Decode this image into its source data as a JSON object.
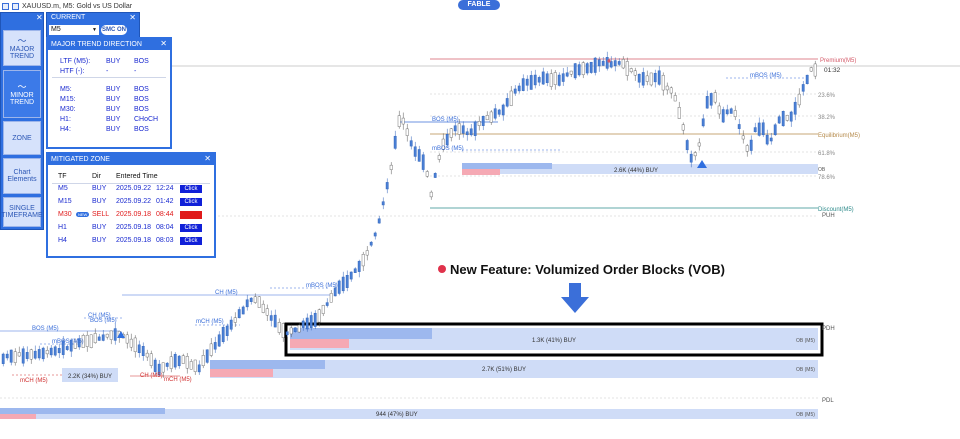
{
  "topbar": {
    "symbol": "XAUUSD.m, M5: Gold vs US Dollar"
  },
  "badge": {
    "label": "FABLE"
  },
  "left_panel": {
    "buttons": [
      {
        "label": "MAJOR TREND",
        "active": false,
        "glyph": "chart-line-icon"
      },
      {
        "label": "MINOR TREND",
        "active": true,
        "glyph": "chart-line-icon"
      },
      {
        "label": "ZONE",
        "active": false
      },
      {
        "label": "Chart Elements",
        "active": false
      },
      {
        "label": "SINGLE TIMEFRAME",
        "active": false
      }
    ]
  },
  "current_panel": {
    "title": "CURRENT",
    "timeframe": "M5",
    "smc_label": "SMC ON"
  },
  "major_trend": {
    "title": "MAJOR TREND DIRECTION",
    "rows_top": [
      {
        "tf": "LTF (M5):",
        "dir": "BUY",
        "type": "BOS"
      },
      {
        "tf": "HTF (-):",
        "dir": "-",
        "type": "-"
      }
    ],
    "rows": [
      {
        "tf": "M5:",
        "dir": "BUY",
        "type": "BOS"
      },
      {
        "tf": "M15:",
        "dir": "BUY",
        "type": "BOS"
      },
      {
        "tf": "M30:",
        "dir": "BUY",
        "type": "BOS"
      },
      {
        "tf": "H1:",
        "dir": "BUY",
        "type": "CHoCH"
      },
      {
        "tf": "H4:",
        "dir": "BUY",
        "type": "BOS"
      }
    ]
  },
  "mitigated_zone": {
    "title": "MITIGATED ZONE",
    "headers": {
      "tf": "TF",
      "dir": "Dir",
      "time": "Entered Time"
    },
    "rows": [
      {
        "tf": "M5",
        "dir": "BUY",
        "date": "2025.09.22",
        "time": "12:24",
        "action": "Click",
        "highlight": false,
        "is_new": false
      },
      {
        "tf": "M15",
        "dir": "BUY",
        "date": "2025.09.22",
        "time": "01:42",
        "action": "Click",
        "highlight": false,
        "is_new": false
      },
      {
        "tf": "M30",
        "dir": "SELL",
        "date": "2025.09.18",
        "time": "08:44",
        "action": "Click",
        "highlight": true,
        "is_new": true,
        "new_label": "NEW"
      },
      {
        "tf": "H1",
        "dir": "BUY",
        "date": "2025.09.18",
        "time": "08:04",
        "action": "Click",
        "highlight": false,
        "is_new": false
      },
      {
        "tf": "H4",
        "dir": "BUY",
        "date": "2025.09.18",
        "time": "08:03",
        "action": "Click",
        "highlight": false,
        "is_new": false
      }
    ]
  },
  "feature": {
    "text": "New Feature: Volumized Order Blocks (VOB)"
  },
  "chart_labels": {
    "premium": "Premium(M5)",
    "time": "01:32",
    "fib_236": "23.6%",
    "fib_382": "38.2%",
    "equilibrium": "Equilibrium(M5)",
    "fib_618": "61.8%",
    "fib_786": "78.6%",
    "discount": "Discount(M5)",
    "puh": "PUH",
    "pdh": "PDH",
    "pdl": "PDL",
    "ob": "OB",
    "ob_m5": "OB (M5)",
    "vob1": "2.6K (44%) BUY",
    "vob2": "1.3K (41%) BUY",
    "vob3": "2.7K (51%) BUY",
    "vob4": "944 (47%) BUY",
    "vob5": "2.2K (34%) BUY",
    "bos_m5": "BOS (M5)",
    "mbos_m5": "mBOS (M5)",
    "mbos_m5_b": "mBOS (M5)",
    "choch_m5": "CH (M5)",
    "mboss_m5": "mBOS (M5)",
    "mch_m5": "mCH (M5)",
    "mch_m5_b": "mCH (M5)",
    "ch_m5_b": "CH (M5)",
    "ch_m5_c": "CH (M5)",
    "bos_left": "BOS (M5)",
    "bos_left2": "BOS (M5)",
    "mbos_left": "mBOS (M5)",
    "mch_left": "mCH (M5)"
  },
  "colors": {
    "panel_blue": "#2f6fe0",
    "bull": "#4a7fd4",
    "bear": "#8a8a8a",
    "ob_blue": "#cfdcf7",
    "ob_pink": "#f5a9b4",
    "premium_line": "#d45b6a",
    "discount_line": "#2e8b8b"
  }
}
